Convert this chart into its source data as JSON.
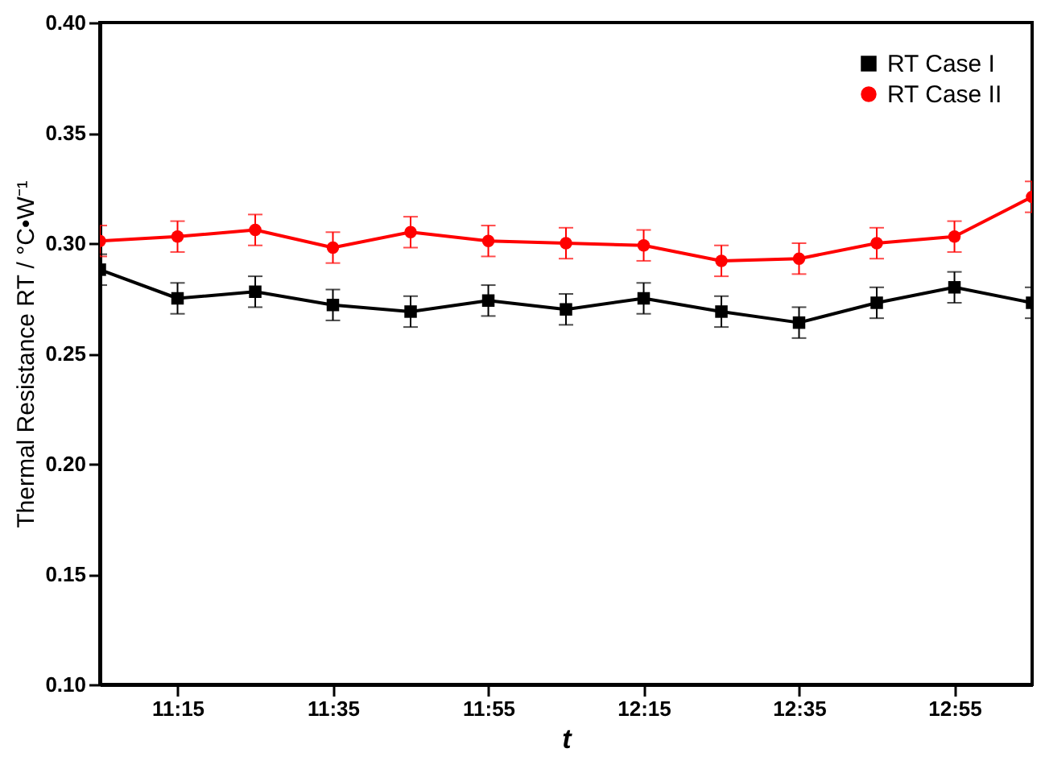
{
  "chart_data": {
    "type": "line",
    "xlabel": "t",
    "ylabel": "Thermal Resistance RT / °C•W⁻¹",
    "x": [
      11.0833,
      11.25,
      11.4167,
      11.5833,
      11.75,
      11.9167,
      12.0833,
      12.25,
      12.4167,
      12.5833,
      12.75,
      12.9167,
      13.0833
    ],
    "xlim": [
      11.0833,
      13.0833
    ],
    "xticks": [
      {
        "value": 11.25,
        "label": "11:15"
      },
      {
        "value": 11.5833,
        "label": "11:35"
      },
      {
        "value": 11.9167,
        "label": "11:55"
      },
      {
        "value": 12.25,
        "label": "12:15"
      },
      {
        "value": 12.5833,
        "label": "12:35"
      },
      {
        "value": 12.9167,
        "label": "12:55"
      }
    ],
    "ylim": [
      0.1,
      0.4
    ],
    "yticks": [
      {
        "value": 0.1,
        "label": "0.10"
      },
      0.15,
      {
        "value": 0.2,
        "label": "0.20"
      },
      0.25,
      {
        "value": 0.3,
        "label": "0.30"
      },
      0.35,
      {
        "value": 0.4,
        "label": "0.40"
      }
    ],
    "series": [
      {
        "name": "RT Case I",
        "color": "#000000",
        "marker": "square",
        "values": [
          0.288,
          0.275,
          0.278,
          0.272,
          0.269,
          0.274,
          0.27,
          0.275,
          0.269,
          0.264,
          0.273,
          0.28,
          0.273
        ],
        "errors": [
          0.007,
          0.007,
          0.007,
          0.007,
          0.007,
          0.007,
          0.007,
          0.007,
          0.007,
          0.007,
          0.007,
          0.007,
          0.007
        ]
      },
      {
        "name": "RT Case II",
        "color": "#ff0000",
        "marker": "circle",
        "values": [
          0.301,
          0.303,
          0.306,
          0.298,
          0.305,
          0.301,
          0.3,
          0.299,
          0.292,
          0.293,
          0.3,
          0.303,
          0.321
        ],
        "errors": [
          0.007,
          0.007,
          0.007,
          0.007,
          0.007,
          0.007,
          0.007,
          0.007,
          0.007,
          0.007,
          0.007,
          0.007,
          0.007
        ]
      }
    ],
    "legend": "top right",
    "grid": false,
    "line_style": "solid"
  }
}
